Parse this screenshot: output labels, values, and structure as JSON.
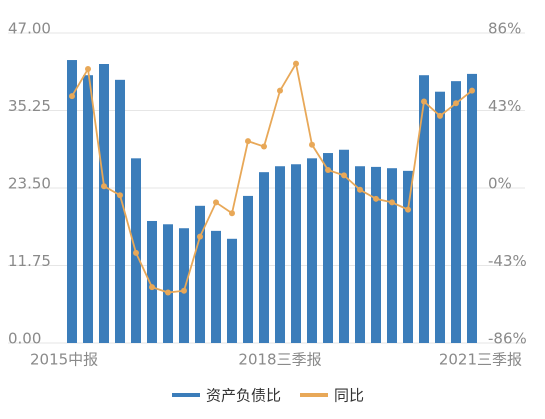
{
  "chart_data": {
    "type": "bar",
    "categories": [
      "2015中报",
      null,
      null,
      null,
      null,
      null,
      null,
      null,
      null,
      null,
      null,
      null,
      null,
      "2018三季报",
      null,
      null,
      null,
      null,
      null,
      null,
      null,
      null,
      null,
      null,
      null,
      "2021三季报"
    ],
    "series": [
      {
        "name": "资产负债比",
        "color": "#3b7dba",
        "type": "bar",
        "values": [
          42.9,
          40.6,
          42.3,
          39.9,
          28.0,
          18.5,
          18.0,
          17.4,
          20.8,
          17.0,
          15.8,
          22.3,
          25.9,
          26.8,
          27.1,
          28.0,
          28.8,
          29.3,
          26.8,
          26.7,
          26.5,
          26.1,
          40.6,
          38.1,
          39.7,
          40.8
        ]
      },
      {
        "name": "同比",
        "color": "#e8a858",
        "type": "line",
        "axis": "y2",
        "values": [
          51,
          66,
          1,
          -4,
          -36,
          -55,
          -58,
          -57,
          -27,
          -8,
          -14,
          26,
          23,
          54,
          69,
          24,
          10,
          7,
          -1,
          -6,
          -8,
          -12,
          48,
          40,
          47,
          54
        ]
      }
    ],
    "ylim": [
      0,
      47
    ],
    "yticks": [
      {
        "value": 0,
        "label": "0.00"
      },
      11.75,
      {
        "value": 23.5,
        "label": "23.50"
      },
      35.25,
      {
        "value": 47,
        "label": "47.00"
      }
    ],
    "y2lim": [
      -86,
      86
    ],
    "y2ticks": [
      {
        "value": -86,
        "label": "-86%"
      },
      {
        "value": -43,
        "label": "-43%"
      },
      {
        "value": 0,
        "label": "0%"
      },
      {
        "value": 43,
        "label": "43%"
      },
      {
        "value": 86,
        "label": "86%"
      }
    ],
    "grid": true
  }
}
